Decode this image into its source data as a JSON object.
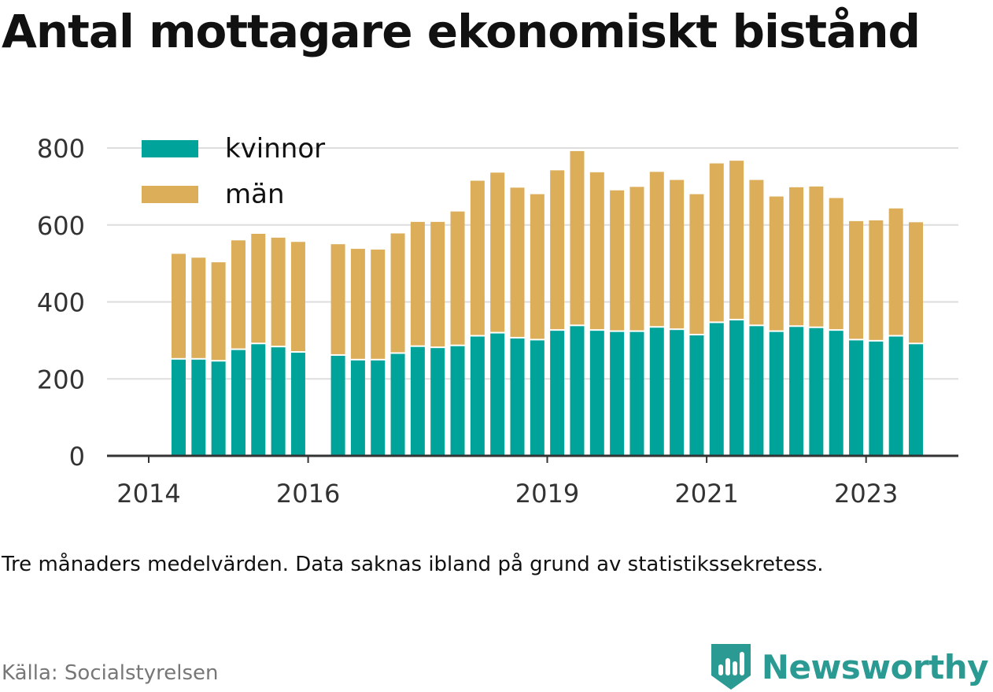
{
  "title": "Antal mottagare ekonomiskt bistånd",
  "subtitle": "Tre månaders medelvärden. Data saknas ibland på grund av statistikssekretess.",
  "source": "Källa: Socialstyrelsen",
  "brand": {
    "name": "Newsworthy",
    "icon": "newsworthy-logo-icon"
  },
  "colors": {
    "kvinnor": "#00a39a",
    "man": "#dcae5a",
    "grid": "#dddddd",
    "axis": "#333333"
  },
  "chart_data": {
    "type": "bar",
    "stacked": true,
    "legend_position": "top-left",
    "grid": true,
    "ylim": [
      0,
      800
    ],
    "yticks": [
      "0",
      "200",
      "400",
      "600",
      "800"
    ],
    "xticks": [
      "2014",
      "2016",
      "2019",
      "2021",
      "2023"
    ],
    "categories": [
      "2014-Q2",
      "2014-Q3",
      "2014-Q4",
      "2015-Q1",
      "2015-Q2",
      "2015-Q3",
      "2015-Q4",
      "2016-Q2",
      "2016-Q3",
      "2016-Q4",
      "2017-Q1",
      "2017-Q2",
      "2017-Q3",
      "2017-Q4",
      "2018-Q1",
      "2018-Q2",
      "2018-Q3",
      "2018-Q4",
      "2019-Q1",
      "2019-Q2",
      "2019-Q3",
      "2019-Q4",
      "2020-Q1",
      "2020-Q2",
      "2020-Q3",
      "2020-Q4",
      "2021-Q1",
      "2021-Q2",
      "2021-Q3",
      "2021-Q4",
      "2022-Q1",
      "2022-Q2",
      "2022-Q3",
      "2022-Q4",
      "2023-Q1",
      "2023-Q2",
      "2023-Q3",
      "2023-Q4"
    ],
    "series": [
      {
        "name": "kvinnor",
        "values": [
          250,
          250,
          245,
          275,
          290,
          282,
          268,
          260,
          248,
          248,
          265,
          283,
          280,
          285,
          310,
          318,
          305,
          300,
          325,
          337,
          325,
          322,
          322,
          333,
          327,
          313,
          345,
          352,
          337,
          322,
          335,
          332,
          325,
          300,
          297,
          310,
          290,
          null
        ]
      },
      {
        "name": "män",
        "values": [
          275,
          265,
          258,
          285,
          287,
          285,
          288,
          290,
          290,
          288,
          313,
          325,
          328,
          350,
          405,
          418,
          392,
          380,
          417,
          455,
          412,
          368,
          377,
          405,
          390,
          367,
          415,
          415,
          380,
          352,
          363,
          368,
          345,
          310,
          315,
          333,
          317,
          null
        ]
      }
    ]
  }
}
